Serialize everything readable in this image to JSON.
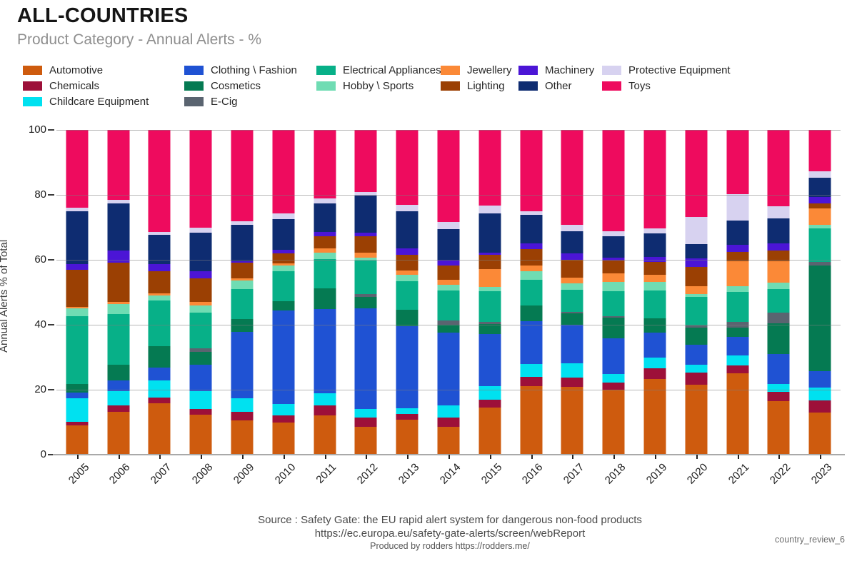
{
  "header": {
    "title": "ALL-COUNTRIES",
    "subtitle": "Product Category - Annual Alerts - %"
  },
  "y_axis": {
    "title": "Annual Alerts % of Total"
  },
  "footer": {
    "line1": "Source : Safety Gate: the EU rapid alert system for dangerous non-food products",
    "line2": "https://ec.europa.eu/safety-gate-alerts/screen/webReport",
    "line3": "Produced by rodders https://rodders.me/",
    "watermark": "country_review_6"
  },
  "chart_data": {
    "type": "bar",
    "stacked": true,
    "percent": true,
    "title": "ALL-COUNTRIES",
    "subtitle": "Product Category - Annual Alerts - %",
    "xlabel": "",
    "ylabel": "Annual Alerts % of Total",
    "ylim": [
      0,
      100
    ],
    "yticks": [
      0,
      20,
      40,
      60,
      80,
      100
    ],
    "grid": true,
    "legend_position": "top",
    "categories": [
      "2005",
      "2006",
      "2007",
      "2008",
      "2009",
      "2010",
      "2011",
      "2012",
      "2013",
      "2014",
      "2015",
      "2016",
      "2017",
      "2018",
      "2019",
      "2020",
      "2021",
      "2022",
      "2023"
    ],
    "series": [
      {
        "key": "automotive",
        "name": "Automotive",
        "color": "#CE5B0E",
        "values": [
          9.0,
          13.3,
          15.8,
          12.3,
          10.5,
          10.0,
          12.0,
          8.6,
          10.7,
          8.5,
          14.4,
          21.1,
          20.8,
          19.9,
          23.3,
          21.5,
          25.0,
          16.4,
          12.9
        ]
      },
      {
        "key": "chemicals",
        "name": "Chemicals",
        "color": "#9D1039",
        "values": [
          1.2,
          1.8,
          1.7,
          1.7,
          2.8,
          2.1,
          3.1,
          2.9,
          1.8,
          2.9,
          2.6,
          2.9,
          2.9,
          2.4,
          3.3,
          3.7,
          2.4,
          2.9,
          3.7
        ]
      },
      {
        "key": "childcare-equipment",
        "name": "Childcare Equipment",
        "color": "#00E1F0",
        "values": [
          7.2,
          4.4,
          5.3,
          5.5,
          4.0,
          3.4,
          3.8,
          2.6,
          1.7,
          3.8,
          4.2,
          3.9,
          4.5,
          2.5,
          3.2,
          2.5,
          3.2,
          2.5,
          4.0
        ]
      },
      {
        "key": "clothing-fashion",
        "name": "Clothing \\ Fashion",
        "color": "#1F52D3",
        "values": [
          1.7,
          3.3,
          4.0,
          8.1,
          20.5,
          28.9,
          25.9,
          30.9,
          25.4,
          22.4,
          16.0,
          13.2,
          11.9,
          11.0,
          7.9,
          6.1,
          5.7,
          9.2,
          5.1
        ]
      },
      {
        "key": "cosmetics",
        "name": "Cosmetics",
        "color": "#057A52",
        "values": [
          2.6,
          4.8,
          6.6,
          4.0,
          4.0,
          2.9,
          6.4,
          3.5,
          5.1,
          2.5,
          3.1,
          4.9,
          3.5,
          6.3,
          4.4,
          5.3,
          2.9,
          9.5,
          32.6
        ]
      },
      {
        "key": "e-cig",
        "name": "E-Cig",
        "color": "#5A6470",
        "values": [
          0,
          0,
          0,
          1.2,
          0,
          0,
          0,
          0.9,
          0,
          1.2,
          0.6,
          0,
          0.4,
          0.5,
          0,
          0.7,
          1.6,
          3.2,
          1.1
        ]
      },
      {
        "key": "electrical-appliances",
        "name": "Electrical Appliances",
        "color": "#07B088",
        "values": [
          21.0,
          15.8,
          14.1,
          11.0,
          9.2,
          9.2,
          9.0,
          10.3,
          8.8,
          9.3,
          9.5,
          7.9,
          6.7,
          7.7,
          8.4,
          8.7,
          9.4,
          7.2,
          10.3
        ]
      },
      {
        "key": "hobby-sports",
        "name": "Hobby \\ Sports",
        "color": "#6FDCB3",
        "values": [
          2.4,
          2.9,
          1.6,
          2.2,
          2.6,
          1.8,
          2.0,
          0.9,
          2.0,
          1.7,
          1.3,
          2.6,
          2.0,
          2.8,
          2.8,
          1.0,
          1.6,
          2.1,
          1.1
        ]
      },
      {
        "key": "jewellery",
        "name": "Jewellery",
        "color": "#FB8937",
        "values": [
          0.4,
          0.7,
          0.7,
          1.1,
          0.7,
          0.7,
          1.3,
          1.7,
          1.2,
          1.6,
          5.4,
          1.8,
          1.8,
          2.7,
          2.0,
          2.4,
          7.8,
          6.6,
          5.0
        ]
      },
      {
        "key": "lighting",
        "name": "Lighting",
        "color": "#9B4003",
        "values": [
          11.5,
          12.1,
          6.6,
          7.3,
          4.9,
          2.9,
          3.8,
          4.9,
          4.9,
          4.4,
          4.4,
          5.1,
          5.6,
          3.9,
          4.0,
          5.9,
          2.9,
          3.2,
          1.5
        ]
      },
      {
        "key": "machinery",
        "name": "Machinery",
        "color": "#4B15D6",
        "values": [
          1.8,
          3.7,
          2.2,
          2.0,
          0.4,
          1.3,
          1.2,
          1.2,
          2.0,
          1.6,
          0.7,
          1.6,
          1.8,
          1.0,
          1.6,
          2.7,
          2.2,
          2.2,
          2.0
        ]
      },
      {
        "key": "other",
        "name": "Other",
        "color": "#0E2C71",
        "values": [
          16.2,
          14.5,
          9.2,
          11.9,
          11.1,
          9.3,
          8.9,
          11.5,
          11.4,
          9.5,
          12.2,
          8.8,
          7.0,
          6.6,
          7.2,
          4.4,
          7.5,
          7.8,
          5.9
        ]
      },
      {
        "key": "protective-equipment",
        "name": "Protective Equipment",
        "color": "#D7D2F0",
        "values": [
          1.0,
          1.1,
          0.9,
          1.7,
          1.1,
          1.7,
          1.6,
          0.9,
          2.0,
          2.2,
          2.3,
          1.2,
          1.8,
          1.5,
          1.6,
          8.3,
          8.1,
          3.8,
          2.0
        ]
      },
      {
        "key": "toys",
        "name": "Toys",
        "color": "#EE0B5E",
        "values": [
          24.0,
          21.6,
          31.3,
          30.0,
          28.2,
          25.8,
          21.0,
          19.2,
          23.0,
          28.4,
          23.3,
          25.0,
          29.3,
          31.2,
          30.3,
          26.8,
          19.7,
          23.4,
          12.8
        ]
      }
    ],
    "legend_columns": [
      [
        0,
        1,
        2
      ],
      [
        3,
        4,
        5
      ],
      [
        6,
        7
      ],
      [
        8,
        9
      ],
      [
        10,
        11
      ],
      [
        12,
        13
      ]
    ],
    "legend_col_widths": [
      226,
      185,
      174,
      109,
      117,
      220
    ]
  }
}
